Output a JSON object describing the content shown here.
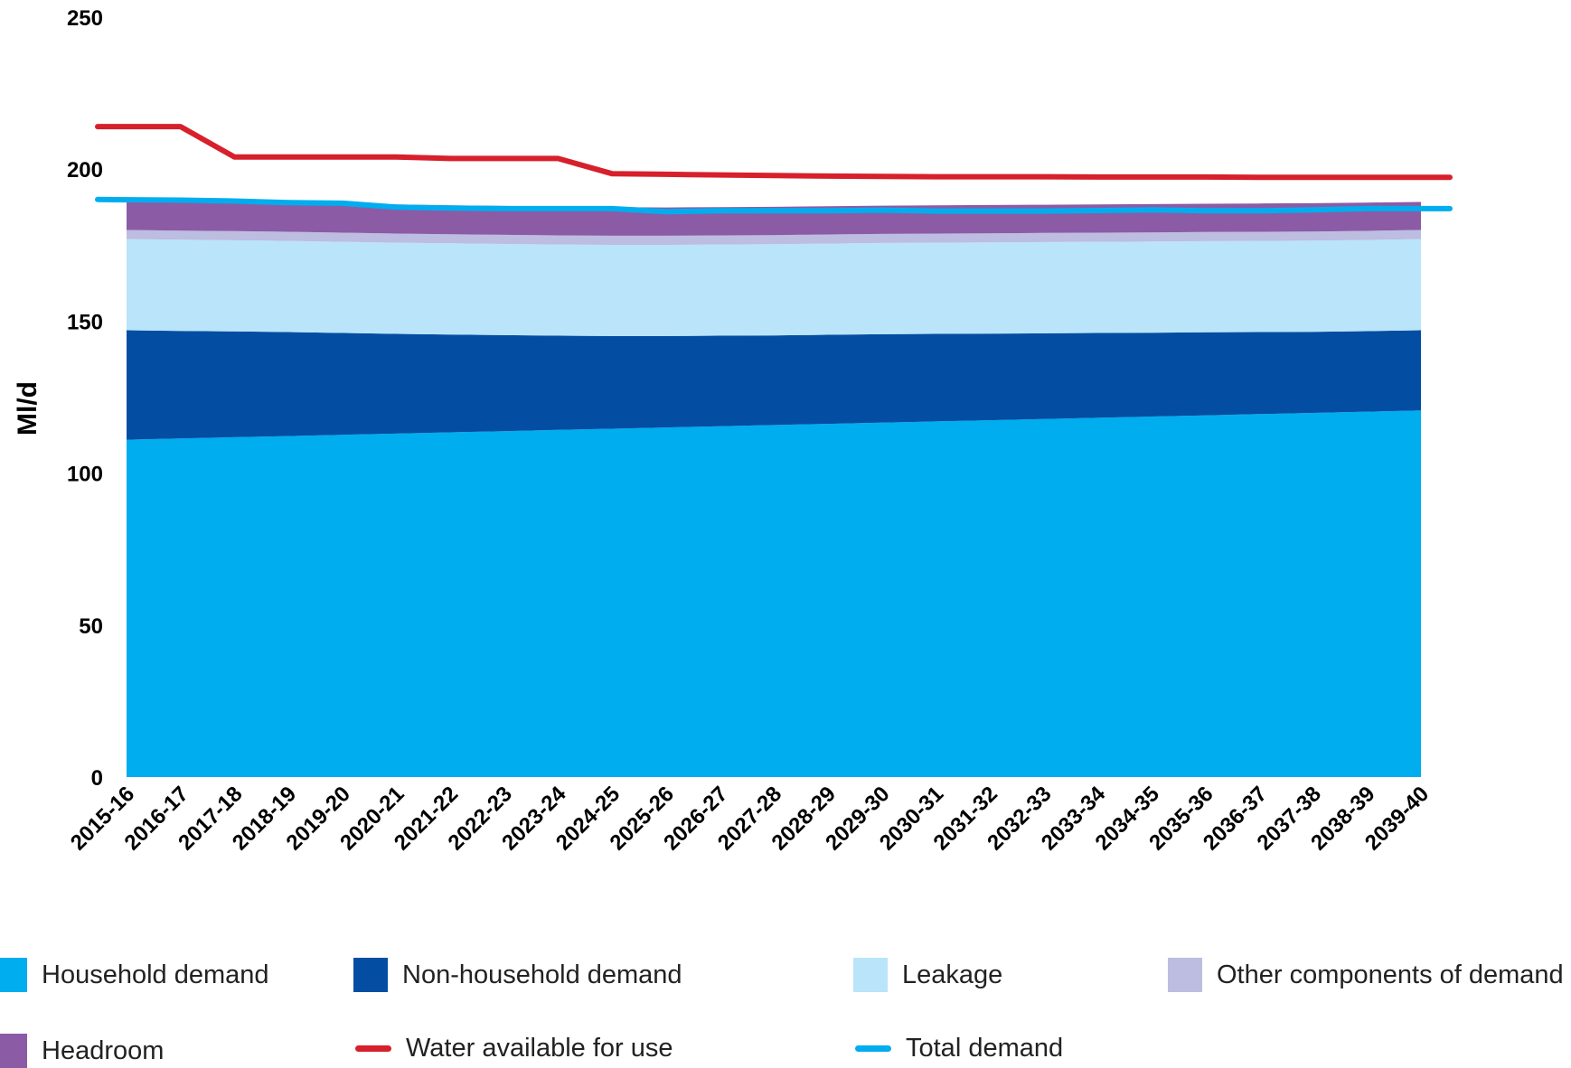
{
  "chart_data": {
    "type": "area",
    "ylabel": "Ml/d",
    "xlabel": "",
    "title": "",
    "ylim": [
      0,
      250
    ],
    "yticks": [
      0,
      50,
      100,
      150,
      200,
      250
    ],
    "grid": false,
    "legend_position": "bottom",
    "categories": [
      "2015-16",
      "2016-17",
      "2017-18",
      "2018-19",
      "2019-20",
      "2020-21",
      "2021-22",
      "2022-23",
      "2023-24",
      "2024-25",
      "2025-26",
      "2026-27",
      "2027-28",
      "2028-29",
      "2029-30",
      "2030-31",
      "2031-32",
      "2032-33",
      "2033-34",
      "2034-35",
      "2035-36",
      "2036-37",
      "2037-38",
      "2038-39",
      "2039-40"
    ],
    "stacked_areas": [
      {
        "name": "Household demand",
        "color": "#00adef",
        "values": [
          111,
          111.4,
          111.8,
          112.2,
          112.6,
          113,
          113.4,
          113.8,
          114.2,
          114.6,
          115,
          115.4,
          115.8,
          116.2,
          116.6,
          117,
          117.4,
          117.8,
          118.2,
          118.6,
          119,
          119.4,
          119.8,
          120.2,
          120.6
        ]
      },
      {
        "name": "Non-household demand",
        "color": "#034ea2",
        "values": [
          36,
          35.4,
          34.8,
          34.2,
          33.5,
          32.8,
          32.2,
          31.6,
          31,
          30.5,
          30.1,
          29.8,
          29.5,
          29.3,
          29.1,
          28.8,
          28.5,
          28.2,
          27.9,
          27.6,
          27.3,
          27,
          26.7,
          26.5,
          26.4
        ]
      },
      {
        "name": "Leakage",
        "color": "#b9e4f9",
        "values": [
          30,
          30,
          30,
          30,
          30,
          30,
          30,
          30,
          30,
          30,
          30,
          30,
          30,
          30,
          30,
          30,
          30,
          30,
          30,
          30,
          30,
          30,
          30,
          30,
          30
        ]
      },
      {
        "name": "Other components of demand",
        "color": "#bcbde0",
        "values": [
          3,
          3,
          3,
          3,
          3,
          3,
          3,
          3,
          3,
          3,
          3,
          3,
          3,
          3,
          3,
          3,
          3,
          3,
          3,
          3,
          3,
          3,
          3,
          3,
          3
        ]
      },
      {
        "name": "Headroom",
        "color": "#8c5ba6",
        "values": [
          10,
          9.9,
          9.8,
          9.8,
          9.7,
          9.6,
          9.5,
          9.5,
          9.5,
          9.4,
          9.3,
          9.3,
          9.3,
          9.3,
          9.3,
          9.3,
          9.3,
          9.3,
          9.3,
          9.3,
          9.3,
          9.3,
          9.3,
          9.3,
          9.2
        ]
      }
    ],
    "lines": [
      {
        "name": "Water available for use",
        "color": "#d7202b",
        "values": [
          214,
          214,
          204,
          204,
          204,
          204,
          203.5,
          203.5,
          203.5,
          198.5,
          198.3,
          198.1,
          197.9,
          197.7,
          197.6,
          197.5,
          197.5,
          197.5,
          197.4,
          197.4,
          197.4,
          197.3,
          197.3,
          197.3,
          197.3
        ]
      },
      {
        "name": "Total demand",
        "color": "#00adef",
        "values": [
          190,
          189.8,
          189.5,
          189,
          188.8,
          187.5,
          187.2,
          187,
          187,
          187,
          186,
          186.3,
          186.3,
          186.3,
          186.5,
          186.2,
          186.2,
          186.2,
          186.4,
          186.6,
          186.3,
          186.3,
          186.6,
          187,
          187
        ]
      }
    ]
  },
  "legend": {
    "household": "Household demand",
    "non_household": "Non-household demand",
    "leakage": "Leakage",
    "other": "Other components of demand",
    "headroom": "Headroom",
    "wafu": "Water available for use",
    "total": "Total demand"
  }
}
